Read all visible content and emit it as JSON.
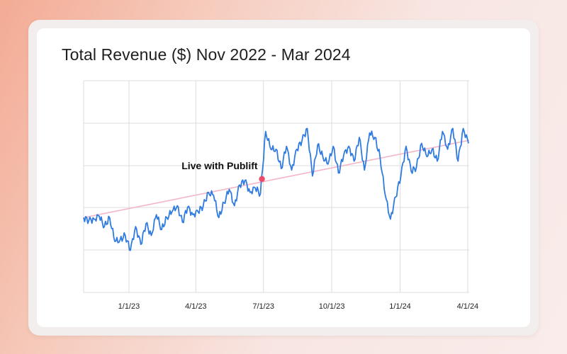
{
  "chart_data": {
    "type": "line",
    "title": "Total Revenue ($) Nov 2022 - Mar 2024",
    "xlabel": "",
    "ylabel": "",
    "x_range": [
      "2022-11-01",
      "2024-04-03"
    ],
    "x_ticks": [
      "1/1/23",
      "4/1/23",
      "7/1/23",
      "10/1/23",
      "1/1/24",
      "4/1/24"
    ],
    "x_tick_dates": [
      "2023-01-01",
      "2023-04-01",
      "2023-07-01",
      "2023-10-01",
      "2024-01-01",
      "2024-04-01"
    ],
    "y_tick_labels_shown": false,
    "grid": true,
    "colors": {
      "revenue_line": "#2f7be0",
      "trend_line": "#f4b6c6",
      "annotation_marker": "#ec4a68",
      "grid": "#dcdce2"
    },
    "series": [
      {
        "name": "",
        "kind": "line",
        "x": [
          "2022-11-01",
          "2022-11-08",
          "2022-11-15",
          "2022-11-22",
          "2022-11-29",
          "2022-12-06",
          "2022-12-13",
          "2022-12-20",
          "2022-12-27",
          "2023-01-03",
          "2023-01-10",
          "2023-01-17",
          "2023-01-24",
          "2023-01-31",
          "2023-02-07",
          "2023-02-14",
          "2023-02-21",
          "2023-02-28",
          "2023-03-07",
          "2023-03-14",
          "2023-03-21",
          "2023-03-28",
          "2023-04-04",
          "2023-04-11",
          "2023-04-18",
          "2023-04-25",
          "2023-05-02",
          "2023-05-09",
          "2023-05-16",
          "2023-05-23",
          "2023-05-30",
          "2023-06-06",
          "2023-06-13",
          "2023-06-20",
          "2023-06-27",
          "2023-07-04",
          "2023-07-11",
          "2023-07-18",
          "2023-07-25",
          "2023-08-01",
          "2023-08-08",
          "2023-08-15",
          "2023-08-22",
          "2023-08-29",
          "2023-09-05",
          "2023-09-12",
          "2023-09-19",
          "2023-09-26",
          "2023-10-03",
          "2023-10-10",
          "2023-10-17",
          "2023-10-24",
          "2023-10-31",
          "2023-11-07",
          "2023-11-14",
          "2023-11-21",
          "2023-11-28",
          "2023-12-05",
          "2023-12-12",
          "2023-12-19",
          "2023-12-26",
          "2024-01-02",
          "2024-01-09",
          "2024-01-16",
          "2024-01-23",
          "2024-01-30",
          "2024-02-06",
          "2024-02-13",
          "2024-02-20",
          "2024-02-27",
          "2024-03-05",
          "2024-03-12",
          "2024-03-19",
          "2024-03-26",
          "2024-04-02"
        ],
        "values": [
          0.36,
          0.34,
          0.35,
          0.37,
          0.3,
          0.36,
          0.2,
          0.21,
          0.24,
          0.14,
          0.3,
          0.18,
          0.32,
          0.24,
          0.38,
          0.28,
          0.36,
          0.4,
          0.44,
          0.33,
          0.43,
          0.38,
          0.4,
          0.44,
          0.53,
          0.51,
          0.36,
          0.46,
          0.55,
          0.44,
          0.58,
          0.61,
          0.53,
          0.56,
          0.52,
          0.94,
          0.82,
          0.82,
          0.69,
          0.84,
          0.68,
          0.82,
          0.88,
          0.96,
          0.64,
          0.85,
          0.77,
          0.72,
          0.84,
          0.66,
          0.78,
          0.84,
          0.74,
          0.9,
          0.68,
          0.93,
          0.9,
          0.77,
          0.51,
          0.35,
          0.5,
          0.64,
          0.84,
          0.67,
          0.7,
          0.86,
          0.77,
          0.82,
          0.74,
          0.94,
          0.82,
          0.96,
          0.74,
          0.96,
          0.86
        ]
      },
      {
        "name": "",
        "kind": "trendline",
        "x": [
          "2022-11-01",
          "2024-04-03"
        ],
        "values": [
          0.36,
          0.88
        ]
      }
    ],
    "annotations": [
      {
        "label": "Live with Publift",
        "x": "2023-06-29",
        "y": 0.62
      }
    ]
  }
}
